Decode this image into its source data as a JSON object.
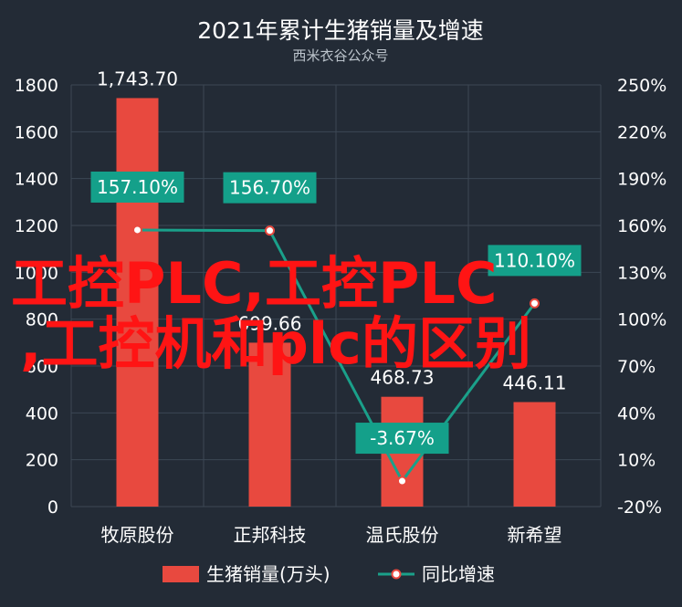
{
  "colors": {
    "background": "#232b36",
    "grid": "#3c4754",
    "bar": "#e8493f",
    "line": "#1aa08a",
    "label_box": "#14a08a",
    "marker_fill": "#ffffff",
    "marker_stroke": "#e8493f",
    "text": "#ffffff",
    "subtitle": "#bcc4cc",
    "watermark": "#ff1414"
  },
  "chart_data": {
    "type": "bar",
    "title": "2021年累计生猪销量及增速",
    "subtitle": "西米衣谷公众号",
    "categories": [
      "牧原股份",
      "正邦科技",
      "温氏股份",
      "新希望"
    ],
    "y_left": {
      "min": 0,
      "max": 1800,
      "ticks": [
        "0",
        "200",
        "400",
        "600",
        "800",
        "1000",
        "1200",
        "1400",
        "1600",
        "1800"
      ]
    },
    "y_right": {
      "min": -20,
      "max": 250,
      "ticks": [
        "-20%",
        "10%",
        "40%",
        "70%",
        "100%",
        "130%",
        "160%",
        "190%",
        "220%",
        "250%"
      ]
    },
    "series": [
      {
        "name": "生猪销量(万头)",
        "type": "bar",
        "axis": "left",
        "values": [
          1743.7,
          699.66,
          468.73,
          446.11
        ],
        "labels": [
          "1,743.70",
          "699.66",
          "468.73",
          "446.11"
        ]
      },
      {
        "name": "同比增速",
        "type": "line",
        "axis": "right",
        "values": [
          157.1,
          156.7,
          -3.67,
          110.1
        ],
        "labels": [
          "157.10%",
          "156.70%",
          "-3.67%",
          "110.10%"
        ]
      }
    ],
    "legend_position": "bottom",
    "grid": true
  },
  "watermark": {
    "line1": "工控PLC,工控PLC",
    "line2": ",工控机和plc的区别"
  }
}
